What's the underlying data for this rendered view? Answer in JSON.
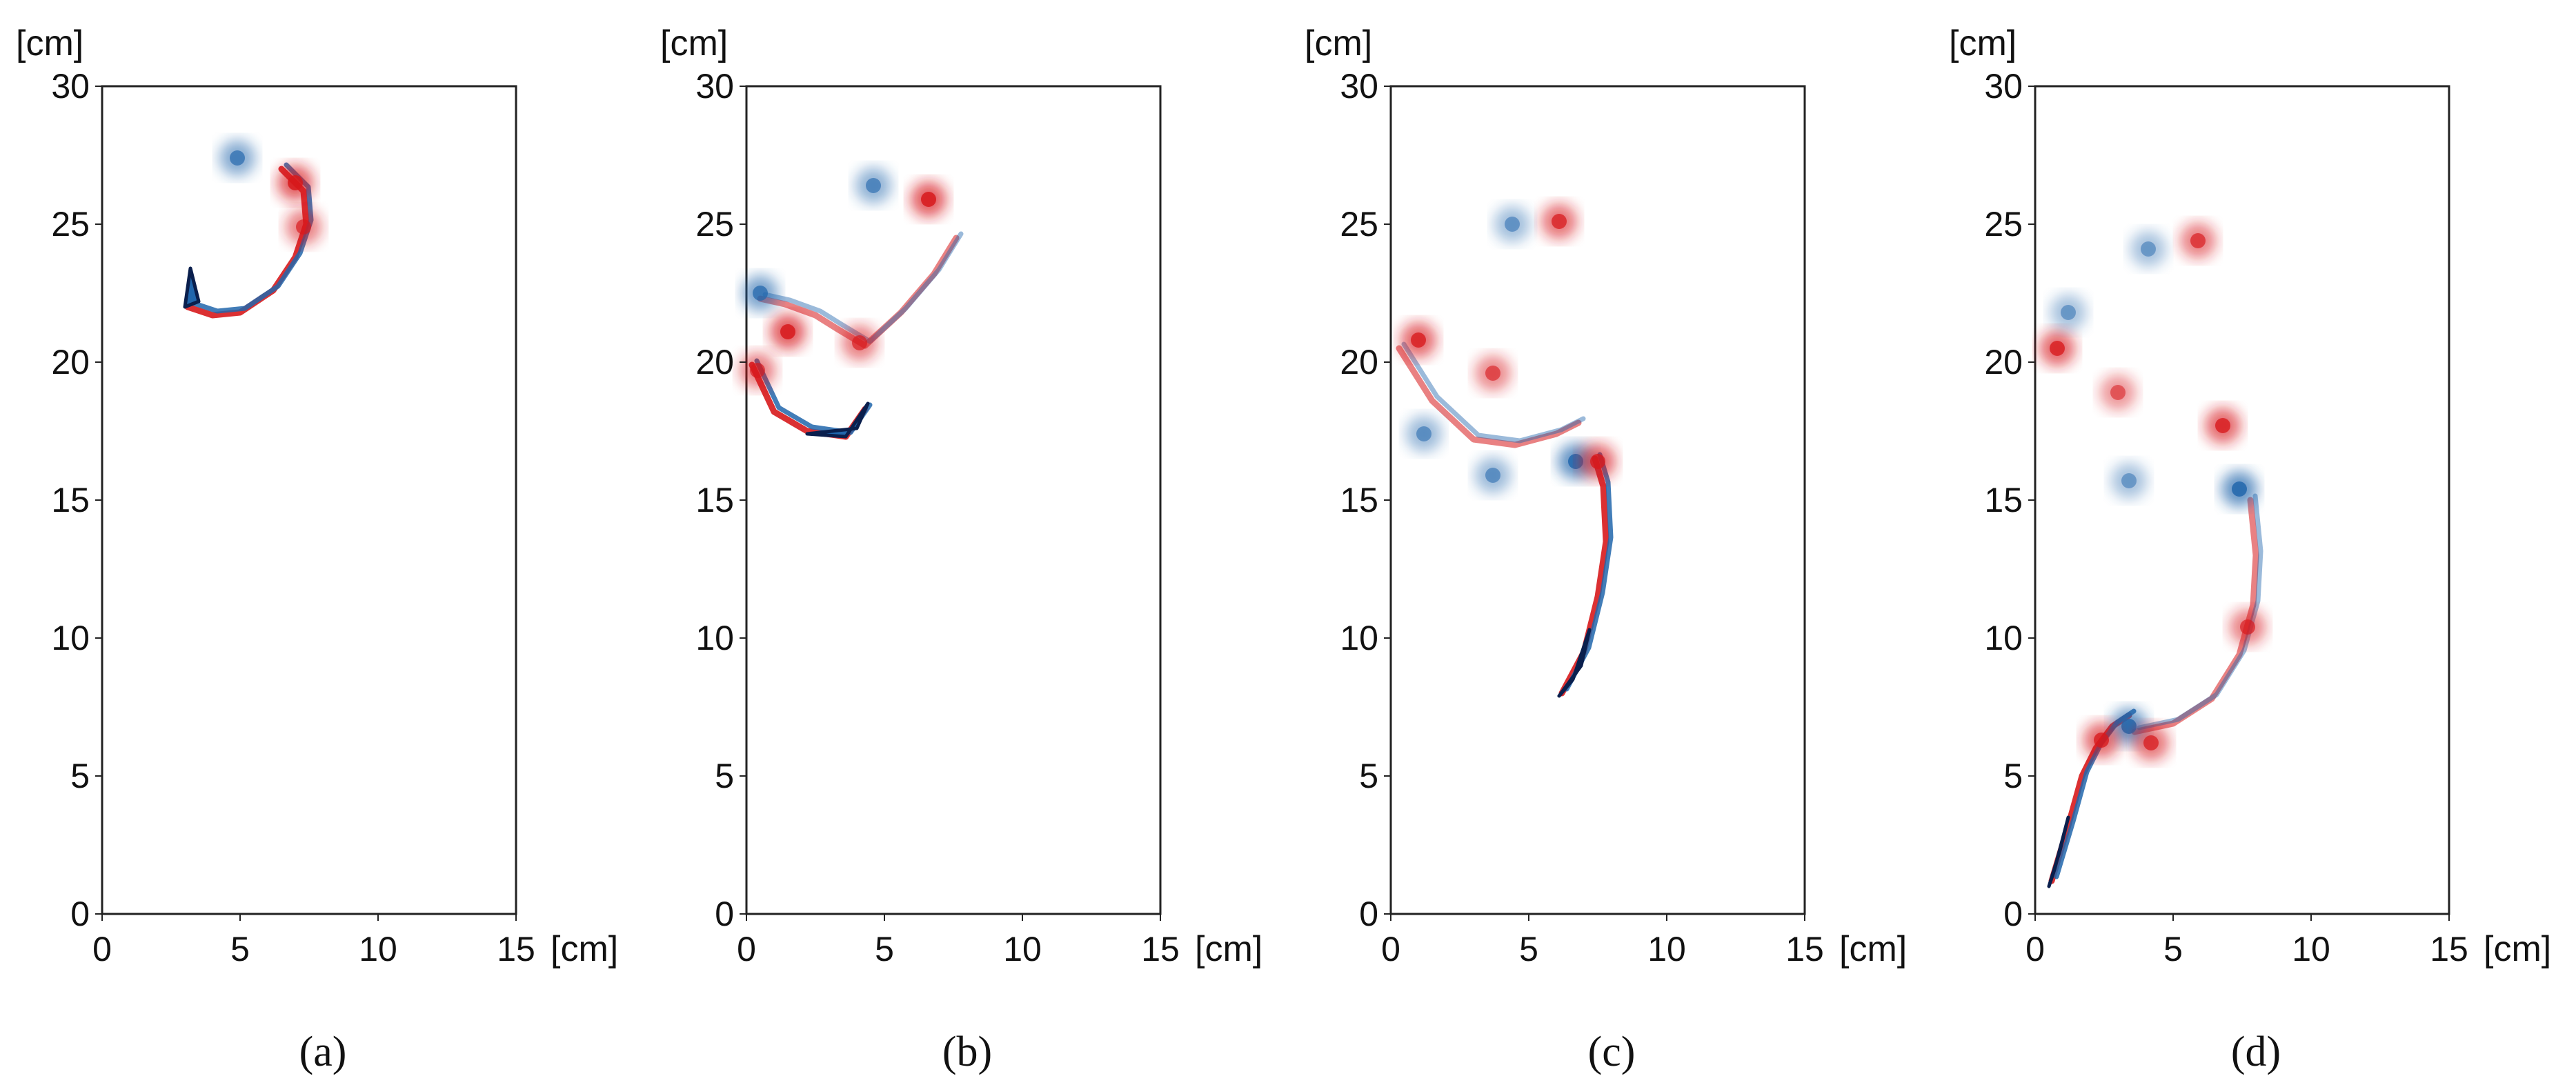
{
  "figure": {
    "panels": [
      {
        "caption": "(a)"
      },
      {
        "caption": "(b)"
      },
      {
        "caption": "(c)"
      },
      {
        "caption": "(d)"
      }
    ]
  },
  "colors": {
    "positive_vorticity": "#d7191c",
    "negative_vorticity": "#2166ac",
    "body_outline": "#0a1f4d",
    "frame": "#222222"
  },
  "chart_data": [
    {
      "type": "heatmap",
      "title": "",
      "caption": "(a)",
      "x_unit": "[cm]",
      "y_unit": "[cm]",
      "xlim": [
        0,
        15
      ],
      "ylim": [
        0,
        30
      ],
      "xticks": [
        "0",
        "5",
        "10",
        "15"
      ],
      "yticks": [
        "0",
        "5",
        "10",
        "15",
        "20",
        "25",
        "30"
      ],
      "body": [
        [
          3.0,
          22.0
        ],
        [
          3.2,
          23.4
        ],
        [
          3.5,
          22.2
        ]
      ],
      "wake": [
        [
          3.1,
          22.0
        ],
        [
          4.0,
          21.7
        ],
        [
          5.0,
          21.8
        ],
        [
          6.2,
          22.6
        ],
        [
          7.0,
          23.8
        ],
        [
          7.4,
          25.0
        ],
        [
          7.3,
          26.2
        ],
        [
          6.5,
          27.0
        ]
      ],
      "vortices": [
        {
          "x": 4.9,
          "y": 27.4,
          "sign": -1,
          "strength": 0.6
        },
        {
          "x": 7.0,
          "y": 26.5,
          "sign": 1,
          "strength": 0.9
        },
        {
          "x": 7.3,
          "y": 24.9,
          "sign": 1,
          "strength": 0.6
        }
      ]
    },
    {
      "type": "heatmap",
      "title": "",
      "caption": "(b)",
      "x_unit": "[cm]",
      "y_unit": "[cm]",
      "xlim": [
        0,
        15
      ],
      "ylim": [
        0,
        30
      ],
      "xticks": [
        "0",
        "5",
        "10",
        "15"
      ],
      "yticks": [
        "0",
        "5",
        "10",
        "15",
        "20",
        "25",
        "30"
      ],
      "body": [
        [
          2.2,
          17.4
        ],
        [
          3.6,
          17.3
        ],
        [
          4.4,
          18.5
        ],
        [
          4.0,
          17.6
        ]
      ],
      "wake": [
        [
          0.2,
          19.9
        ],
        [
          1.0,
          18.2
        ],
        [
          2.2,
          17.5
        ],
        [
          3.6,
          17.3
        ],
        [
          4.3,
          18.3
        ]
      ],
      "wake2": [
        [
          0.5,
          22.3
        ],
        [
          1.4,
          22.1
        ],
        [
          2.5,
          21.7
        ],
        [
          3.3,
          21.2
        ],
        [
          4.3,
          20.6
        ],
        [
          5.6,
          21.8
        ],
        [
          6.8,
          23.2
        ],
        [
          7.6,
          24.5
        ]
      ],
      "vortices": [
        {
          "x": 4.6,
          "y": 26.4,
          "sign": -1,
          "strength": 0.5
        },
        {
          "x": 6.6,
          "y": 25.9,
          "sign": 1,
          "strength": 0.9
        },
        {
          "x": 1.5,
          "y": 21.1,
          "sign": 1,
          "strength": 0.9
        },
        {
          "x": 0.5,
          "y": 22.5,
          "sign": -1,
          "strength": 0.7
        },
        {
          "x": 4.1,
          "y": 20.7,
          "sign": 1,
          "strength": 0.6
        },
        {
          "x": 0.4,
          "y": 19.7,
          "sign": 1,
          "strength": 0.6
        }
      ]
    },
    {
      "type": "heatmap",
      "title": "",
      "caption": "(c)",
      "x_unit": "[cm]",
      "y_unit": "[cm]",
      "xlim": [
        0,
        15
      ],
      "ylim": [
        0,
        30
      ],
      "xticks": [
        "0",
        "5",
        "10",
        "15"
      ],
      "yticks": [
        "0",
        "5",
        "10",
        "15",
        "20",
        "25",
        "30"
      ],
      "body": [
        [
          6.1,
          7.9
        ],
        [
          6.9,
          9.0
        ],
        [
          7.2,
          10.3
        ],
        [
          6.6,
          8.5
        ]
      ],
      "wake": [
        [
          6.2,
          8.0
        ],
        [
          7.0,
          9.5
        ],
        [
          7.5,
          11.5
        ],
        [
          7.8,
          13.5
        ],
        [
          7.7,
          15.5
        ],
        [
          7.4,
          16.5
        ]
      ],
      "wake2": [
        [
          0.3,
          20.5
        ],
        [
          1.5,
          18.6
        ],
        [
          3.0,
          17.2
        ],
        [
          4.5,
          17.0
        ],
        [
          6.0,
          17.4
        ],
        [
          6.8,
          17.8
        ]
      ],
      "vortices": [
        {
          "x": 6.1,
          "y": 25.1,
          "sign": 1,
          "strength": 0.7
        },
        {
          "x": 4.4,
          "y": 25.0,
          "sign": -1,
          "strength": 0.35
        },
        {
          "x": 1.0,
          "y": 20.8,
          "sign": 1,
          "strength": 0.8
        },
        {
          "x": 6.7,
          "y": 16.4,
          "sign": -1,
          "strength": 0.9
        },
        {
          "x": 7.5,
          "y": 16.4,
          "sign": 1,
          "strength": 0.8
        },
        {
          "x": 3.7,
          "y": 19.6,
          "sign": 1,
          "strength": 0.5
        },
        {
          "x": 1.2,
          "y": 17.4,
          "sign": -1,
          "strength": 0.4
        },
        {
          "x": 3.7,
          "y": 15.9,
          "sign": -1,
          "strength": 0.4
        }
      ]
    },
    {
      "type": "heatmap",
      "title": "",
      "caption": "(d)",
      "x_unit": "[cm]",
      "y_unit": "[cm]",
      "xlim": [
        0,
        15
      ],
      "ylim": [
        0,
        30
      ],
      "xticks": [
        "0",
        "5",
        "10",
        "15"
      ],
      "yticks": [
        "0",
        "5",
        "10",
        "15",
        "20",
        "25",
        "30"
      ],
      "body": [
        [
          0.5,
          1.0
        ],
        [
          0.9,
          2.3
        ],
        [
          1.2,
          3.5
        ],
        [
          0.7,
          1.6
        ]
      ],
      "wake": [
        [
          0.6,
          1.2
        ],
        [
          1.2,
          3.2
        ],
        [
          1.7,
          5.0
        ],
        [
          2.2,
          6.0
        ],
        [
          2.8,
          6.8
        ],
        [
          3.4,
          7.2
        ]
      ],
      "wake2": [
        [
          3.6,
          6.6
        ],
        [
          5.0,
          6.9
        ],
        [
          6.4,
          7.8
        ],
        [
          7.4,
          9.4
        ],
        [
          7.9,
          11.2
        ],
        [
          8.0,
          13.0
        ],
        [
          7.8,
          15.0
        ]
      ],
      "vortices": [
        {
          "x": 5.9,
          "y": 24.4,
          "sign": 1,
          "strength": 0.6
        },
        {
          "x": 4.1,
          "y": 24.1,
          "sign": -1,
          "strength": 0.3
        },
        {
          "x": 0.8,
          "y": 20.5,
          "sign": 1,
          "strength": 0.8
        },
        {
          "x": 1.2,
          "y": 21.8,
          "sign": -1,
          "strength": 0.3
        },
        {
          "x": 6.8,
          "y": 17.7,
          "sign": 1,
          "strength": 0.8
        },
        {
          "x": 7.4,
          "y": 15.4,
          "sign": -1,
          "strength": 0.9
        },
        {
          "x": 3.4,
          "y": 6.8,
          "sign": -1,
          "strength": 0.9
        },
        {
          "x": 2.4,
          "y": 6.3,
          "sign": 1,
          "strength": 0.8
        },
        {
          "x": 4.2,
          "y": 6.2,
          "sign": 1,
          "strength": 0.7
        },
        {
          "x": 7.7,
          "y": 10.4,
          "sign": 1,
          "strength": 0.6
        },
        {
          "x": 3.0,
          "y": 18.9,
          "sign": 1,
          "strength": 0.4
        },
        {
          "x": 3.4,
          "y": 15.7,
          "sign": -1,
          "strength": 0.3
        }
      ]
    }
  ]
}
